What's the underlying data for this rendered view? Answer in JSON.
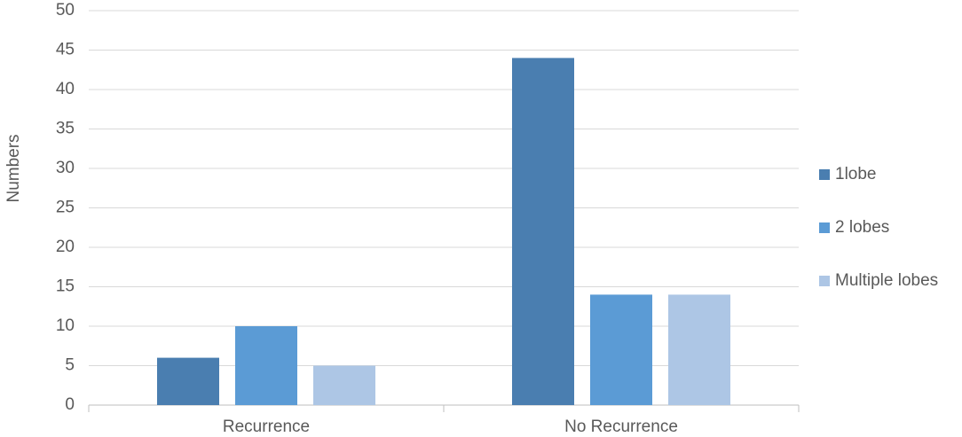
{
  "chart_data": {
    "type": "bar",
    "categories": [
      "Recurrence",
      "No Recurrence"
    ],
    "series": [
      {
        "name": "1lobe",
        "color": "#4a7eb0",
        "values": [
          6,
          44
        ]
      },
      {
        "name": "2 lobes",
        "color": "#5b9bd5",
        "values": [
          10,
          14
        ]
      },
      {
        "name": "Multiple lobes",
        "color": "#adc6e5",
        "values": [
          5,
          14
        ]
      }
    ],
    "y_label": "Numbers",
    "ylim": [
      0,
      50
    ],
    "yticks": [
      0,
      5,
      10,
      15,
      20,
      25,
      30,
      35,
      40,
      45,
      50
    ],
    "grid": true,
    "legend": "right"
  }
}
